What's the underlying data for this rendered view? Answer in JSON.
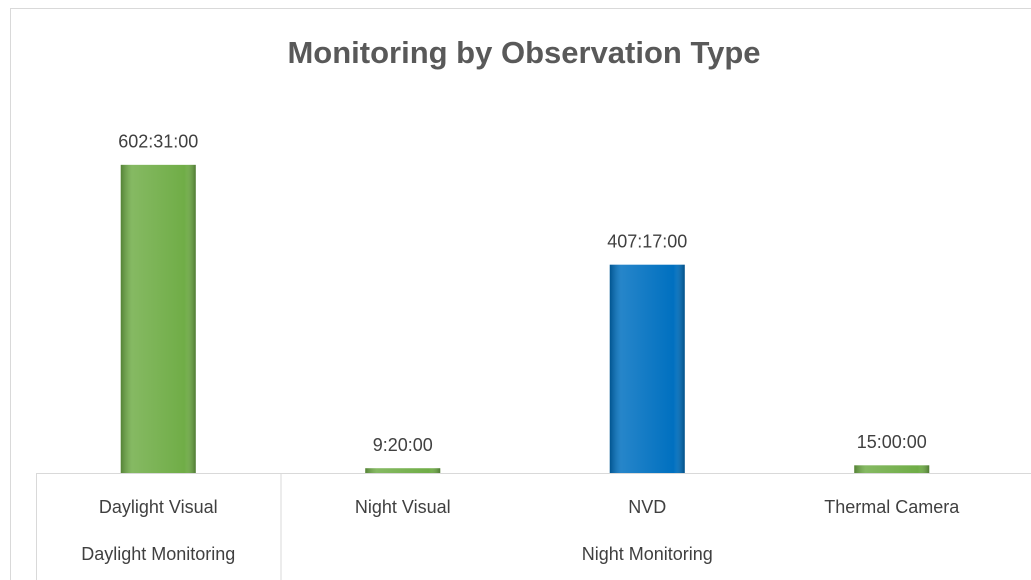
{
  "chart_data": {
    "type": "bar",
    "title": "Monitoring by Observation Type",
    "categories": [
      "Daylight Visual",
      "Night Visual",
      "NVD",
      "Thermal Camera"
    ],
    "values": [
      602.5167,
      9.3333,
      407.2833,
      15
    ],
    "value_labels": [
      "602:31:00",
      "9:20:00",
      "407:17:00",
      "15:00:00"
    ],
    "colors": [
      "#70ad47",
      "#70ad47",
      "#0070c0",
      "#70ad47"
    ],
    "groups": [
      {
        "label": "Daylight Monitoring",
        "span": 1
      },
      {
        "label": "Night Monitoring",
        "span": 3
      }
    ],
    "ylim": [
      0,
      700
    ]
  }
}
